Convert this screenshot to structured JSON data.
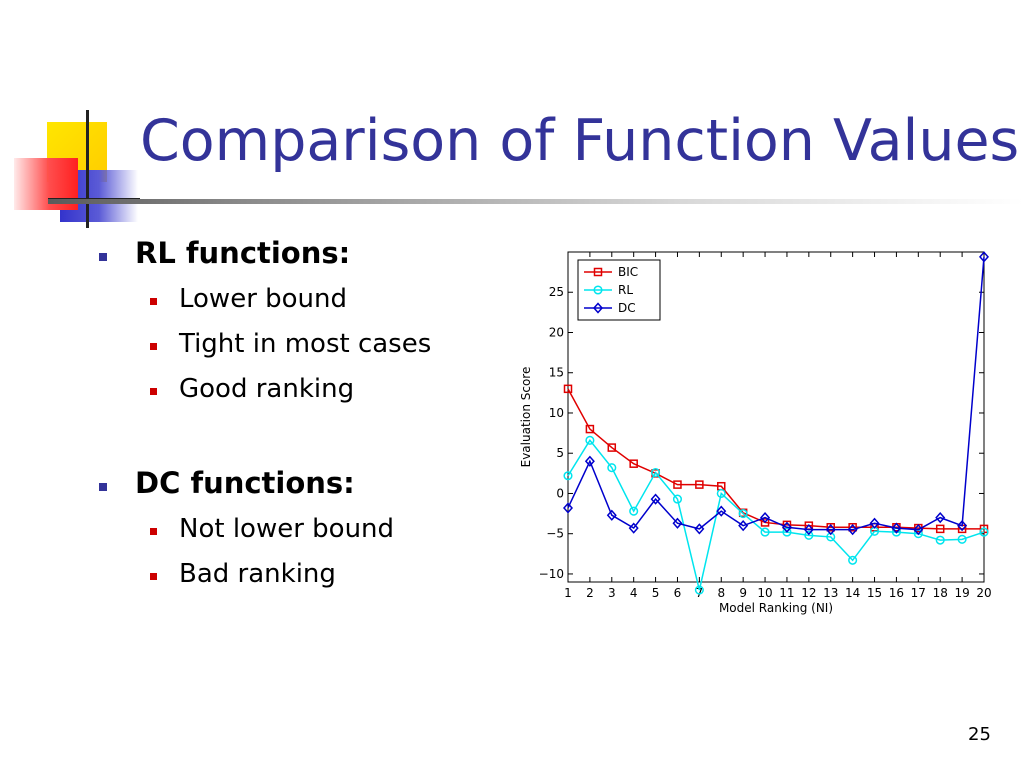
{
  "slide": {
    "title": "Comparison of Function Values",
    "page_number": "25"
  },
  "bullets": [
    {
      "label": "RL functions:",
      "subitems": [
        "Lower bound",
        "Tight in most cases",
        "Good ranking"
      ]
    },
    {
      "label": "DC functions:",
      "subitems": [
        "Not lower bound",
        "Bad ranking"
      ]
    }
  ],
  "colors": {
    "title": "#333399",
    "BIC": "#e00000",
    "RL": "#00e5ee",
    "DC": "#0000cc"
  },
  "chart_data": {
    "type": "line",
    "xlabel": "Model Ranking (NI)",
    "ylabel": "Evaluation Score",
    "x": [
      1,
      2,
      3,
      4,
      5,
      6,
      7,
      8,
      9,
      10,
      11,
      12,
      13,
      14,
      15,
      16,
      17,
      18,
      19,
      20
    ],
    "xlim": [
      1,
      20
    ],
    "ylim": [
      -11,
      30
    ],
    "yticks": [
      -10,
      -5,
      0,
      5,
      10,
      15,
      20,
      25
    ],
    "grid": false,
    "legend": "top-left",
    "series": [
      {
        "name": "BIC",
        "marker": "square",
        "color": "#e00000",
        "values": [
          13,
          8,
          5.7,
          3.7,
          2.5,
          1.1,
          1.1,
          0.9,
          -2.4,
          -3.6,
          -3.9,
          -4.0,
          -4.2,
          -4.2,
          -4.2,
          -4.2,
          -4.3,
          -4.4,
          -4.4,
          -4.4
        ]
      },
      {
        "name": "RL",
        "marker": "circle",
        "color": "#00e5ee",
        "values": [
          2.2,
          6.6,
          3.2,
          -2.2,
          2.6,
          -0.7,
          -12,
          0,
          -2.5,
          -4.8,
          -4.8,
          -5.2,
          -5.4,
          -8.3,
          -4.7,
          -4.8,
          -5.0,
          -5.8,
          -5.7,
          -4.8
        ]
      },
      {
        "name": "DC",
        "marker": "diamond",
        "color": "#0000cc",
        "values": [
          -1.8,
          4.0,
          -2.7,
          -4.3,
          -0.7,
          -3.7,
          -4.4,
          -2.2,
          -4.0,
          -3.0,
          -4.2,
          -4.5,
          -4.5,
          -4.5,
          -3.7,
          -4.3,
          -4.5,
          -3.0,
          -4.0,
          29.4
        ]
      }
    ]
  }
}
